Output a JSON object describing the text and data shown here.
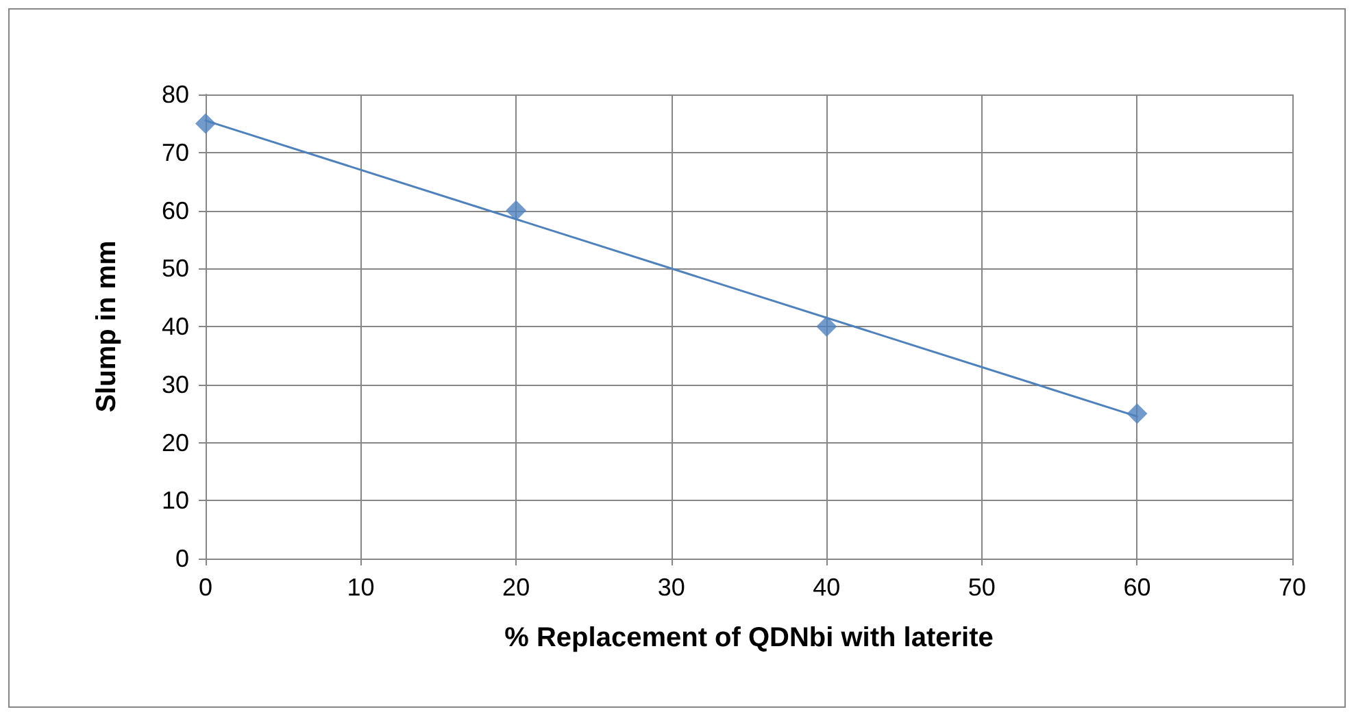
{
  "chart_data": {
    "type": "scatter",
    "xlabel": "% Replacement of QDNbi with laterite",
    "ylabel": "Slump in mm",
    "x": [
      0,
      20,
      40,
      60
    ],
    "series": [
      {
        "type": "scatter",
        "color": "#4f81bd",
        "values": [
          75,
          60,
          40,
          25
        ],
        "marker": "diamond"
      },
      {
        "type": "line",
        "color": "#4f81bd",
        "x": [
          0,
          60
        ],
        "values": [
          75.5,
          24.5
        ],
        "marker": "none",
        "line_style": "solid"
      }
    ],
    "xlim": [
      0,
      70
    ],
    "xticks": [
      0,
      10,
      20,
      30,
      40,
      50,
      60,
      70
    ],
    "ylim": [
      0,
      80
    ],
    "yticks": [
      0,
      10,
      20,
      30,
      40,
      50,
      60,
      70,
      80
    ],
    "grid": true
  }
}
